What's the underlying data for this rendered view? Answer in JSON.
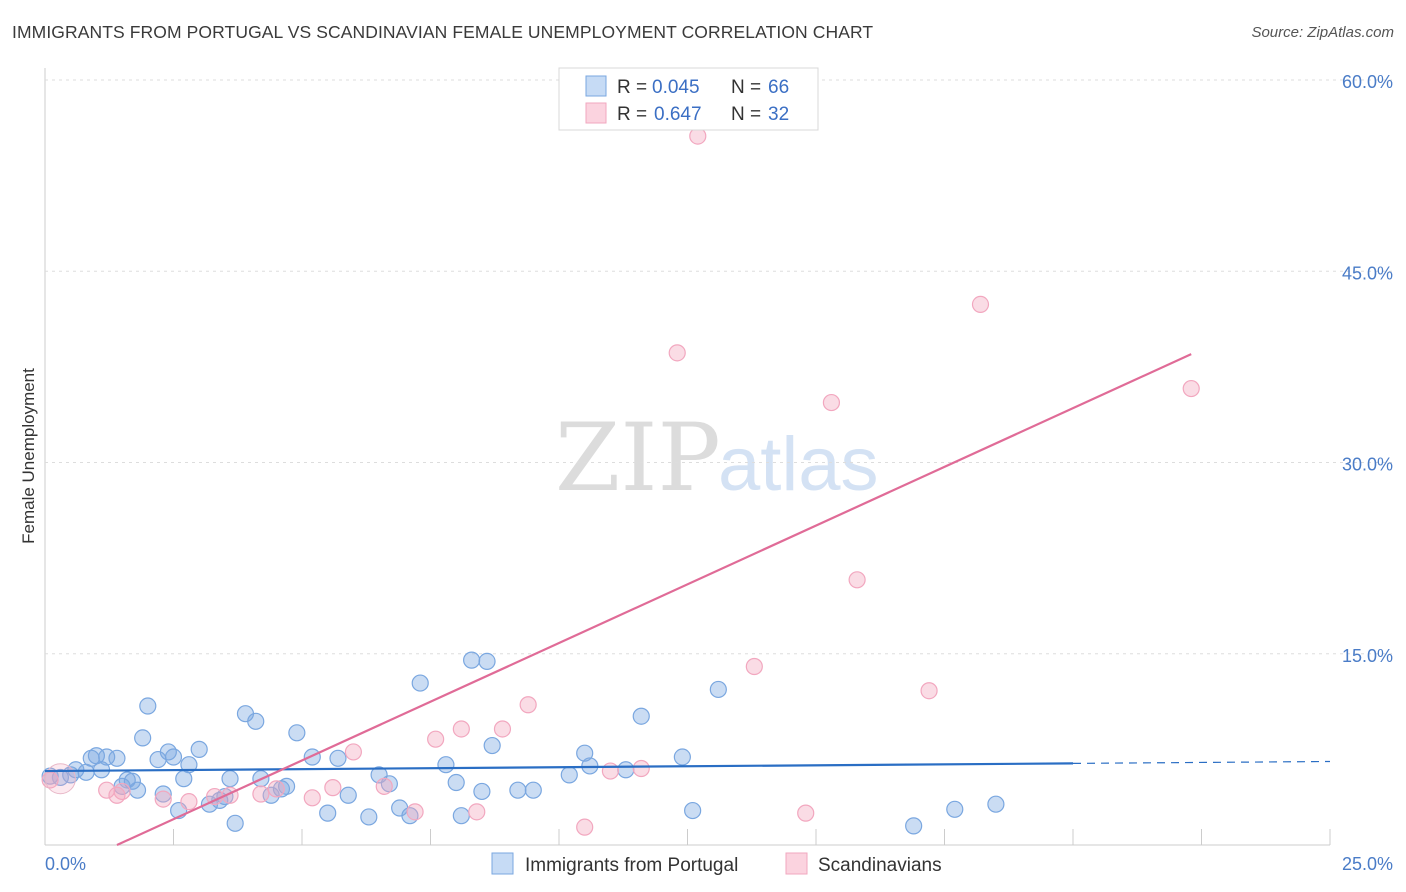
{
  "header": {
    "title": "IMMIGRANTS FROM PORTUGAL VS SCANDINAVIAN FEMALE UNEMPLOYMENT CORRELATION CHART",
    "source": "Source: ZipAtlas.com"
  },
  "watermark": {
    "zip": "ZIP",
    "atlas": "atlas"
  },
  "chart_data": {
    "type": "scatter",
    "title": "IMMIGRANTS FROM PORTUGAL VS SCANDINAVIAN FEMALE UNEMPLOYMENT CORRELATION CHART",
    "xlabel": "",
    "ylabel": "Female Unemployment",
    "xlim": [
      0,
      25
    ],
    "ylim": [
      0,
      60
    ],
    "x_tick_labels": [
      "0.0%",
      "25.0%"
    ],
    "y_ticks": [
      15,
      30,
      45,
      60
    ],
    "y_tick_labels": [
      "15.0%",
      "30.0%",
      "45.0%",
      "60.0%"
    ],
    "legend": {
      "position": "top-center",
      "entries": [
        {
          "r_label": "R =",
          "r": "0.045",
          "n_label": "N =",
          "n": "66"
        },
        {
          "r_label": "R =",
          "r": "0.647",
          "n_label": "N =",
          "n": "32"
        }
      ]
    },
    "series": [
      {
        "name": "Immigrants from Portugal",
        "color": "#7aa7e0",
        "line_color": "#2a6ec4",
        "trend": {
          "x0": 0,
          "y0": 5.8,
          "x1": 20,
          "y1": 6.4,
          "dash_to": 25
        },
        "points": [
          [
            0.1,
            5.4
          ],
          [
            0.3,
            5.3
          ],
          [
            0.5,
            5.5
          ],
          [
            0.6,
            5.9
          ],
          [
            0.8,
            5.7
          ],
          [
            0.9,
            6.8
          ],
          [
            1.0,
            7.0
          ],
          [
            1.1,
            5.9
          ],
          [
            1.2,
            6.9
          ],
          [
            1.4,
            6.8
          ],
          [
            1.5,
            4.6
          ],
          [
            1.6,
            5.1
          ],
          [
            1.7,
            5.0
          ],
          [
            1.8,
            4.3
          ],
          [
            1.9,
            8.4
          ],
          [
            2.0,
            10.9
          ],
          [
            2.2,
            6.7
          ],
          [
            2.3,
            4.0
          ],
          [
            2.4,
            7.3
          ],
          [
            2.5,
            6.9
          ],
          [
            2.6,
            2.7
          ],
          [
            2.7,
            5.2
          ],
          [
            2.8,
            6.3
          ],
          [
            3.0,
            7.5
          ],
          [
            3.2,
            3.2
          ],
          [
            3.4,
            3.5
          ],
          [
            3.5,
            3.8
          ],
          [
            3.6,
            5.2
          ],
          [
            3.7,
            1.7
          ],
          [
            3.9,
            10.3
          ],
          [
            4.1,
            9.7
          ],
          [
            4.2,
            5.2
          ],
          [
            4.4,
            3.9
          ],
          [
            4.6,
            4.4
          ],
          [
            4.7,
            4.6
          ],
          [
            4.9,
            8.8
          ],
          [
            5.2,
            6.9
          ],
          [
            5.5,
            2.5
          ],
          [
            5.7,
            6.8
          ],
          [
            5.9,
            3.9
          ],
          [
            6.3,
            2.2
          ],
          [
            6.5,
            5.5
          ],
          [
            6.7,
            4.8
          ],
          [
            6.9,
            2.9
          ],
          [
            7.1,
            2.3
          ],
          [
            7.3,
            12.7
          ],
          [
            7.8,
            6.3
          ],
          [
            8.0,
            4.9
          ],
          [
            8.1,
            2.3
          ],
          [
            8.3,
            14.5
          ],
          [
            8.5,
            4.2
          ],
          [
            8.6,
            14.4
          ],
          [
            8.7,
            7.8
          ],
          [
            9.2,
            4.3
          ],
          [
            9.5,
            4.3
          ],
          [
            10.2,
            5.5
          ],
          [
            10.5,
            7.2
          ],
          [
            10.6,
            6.2
          ],
          [
            11.3,
            5.9
          ],
          [
            11.6,
            10.1
          ],
          [
            12.4,
            6.9
          ],
          [
            12.6,
            2.7
          ],
          [
            13.1,
            12.2
          ],
          [
            16.9,
            1.5
          ],
          [
            17.7,
            2.8
          ],
          [
            18.5,
            3.2
          ]
        ]
      },
      {
        "name": "Scandinavians",
        "color": "#f2a7bf",
        "line_color": "#e06b97",
        "trend": {
          "x0": 1.4,
          "y0": 0,
          "x1": 22.3,
          "y1": 38.5
        },
        "points": [
          [
            0.1,
            5.1
          ],
          [
            1.2,
            4.3
          ],
          [
            1.4,
            3.9
          ],
          [
            1.5,
            4.2
          ],
          [
            2.3,
            3.6
          ],
          [
            2.8,
            3.4
          ],
          [
            3.3,
            3.8
          ],
          [
            3.6,
            3.9
          ],
          [
            4.2,
            4.0
          ],
          [
            4.5,
            4.4
          ],
          [
            5.2,
            3.7
          ],
          [
            5.6,
            4.5
          ],
          [
            6.0,
            7.3
          ],
          [
            6.6,
            4.6
          ],
          [
            7.2,
            2.6
          ],
          [
            7.6,
            8.3
          ],
          [
            8.1,
            9.1
          ],
          [
            8.4,
            2.6
          ],
          [
            8.9,
            9.1
          ],
          [
            9.4,
            11.0
          ],
          [
            10.5,
            1.4
          ],
          [
            11.0,
            5.8
          ],
          [
            11.6,
            6.0
          ],
          [
            12.3,
            38.6
          ],
          [
            12.7,
            55.6
          ],
          [
            13.8,
            14.0
          ],
          [
            14.8,
            2.5
          ],
          [
            15.3,
            34.7
          ],
          [
            15.8,
            20.8
          ],
          [
            17.2,
            12.1
          ],
          [
            18.2,
            42.4
          ],
          [
            22.3,
            35.8
          ]
        ]
      }
    ]
  }
}
